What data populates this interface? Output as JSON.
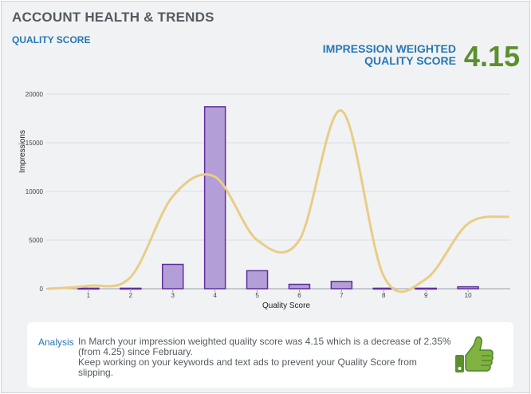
{
  "header": {
    "title": "ACCOUNT HEALTH & TRENDS",
    "subtitle": "QUALITY SCORE",
    "iwqs_label_line1": "IMPRESSION WEIGHTED",
    "iwqs_label_line2": "QUALITY SCORE",
    "iwqs_value": "4.15"
  },
  "colors": {
    "bar_fill": "#b49ed8",
    "bar_stroke": "#5d2f9c",
    "line": "#e8cd86",
    "value_green": "#5c8f2e",
    "accent_blue": "#2778b4"
  },
  "chart_data": {
    "type": "bar",
    "categories": [
      "1",
      "2",
      "3",
      "4",
      "5",
      "6",
      "7",
      "8",
      "9",
      "10"
    ],
    "values": [
      50,
      50,
      2500,
      18700,
      1850,
      450,
      750,
      50,
      50,
      200
    ],
    "xlabel": "Quality Score",
    "ylabel": "Impressions",
    "ylim": [
      0,
      20000
    ],
    "yticks": [
      0,
      5000,
      10000,
      15000,
      20000
    ],
    "grid": true,
    "overlay_line": {
      "type": "line",
      "x": [
        0.05,
        1,
        2,
        3,
        4,
        5,
        6,
        7,
        8,
        9,
        10,
        10.95
      ],
      "values": [
        0,
        300,
        1200,
        9500,
        11500,
        5000,
        5000,
        18300,
        1300,
        1000,
        6700,
        7400
      ]
    }
  },
  "analysis": {
    "label": "Analysis",
    "line1": "In March your impression weighted quality score was 4.15 which is a decrease of 2.35% (from 4.25) since February.",
    "line2": "Keep working on your keywords and text ads to prevent your Quality Score from slipping."
  },
  "icons": {
    "thumb": "thumbs-up-icon"
  }
}
